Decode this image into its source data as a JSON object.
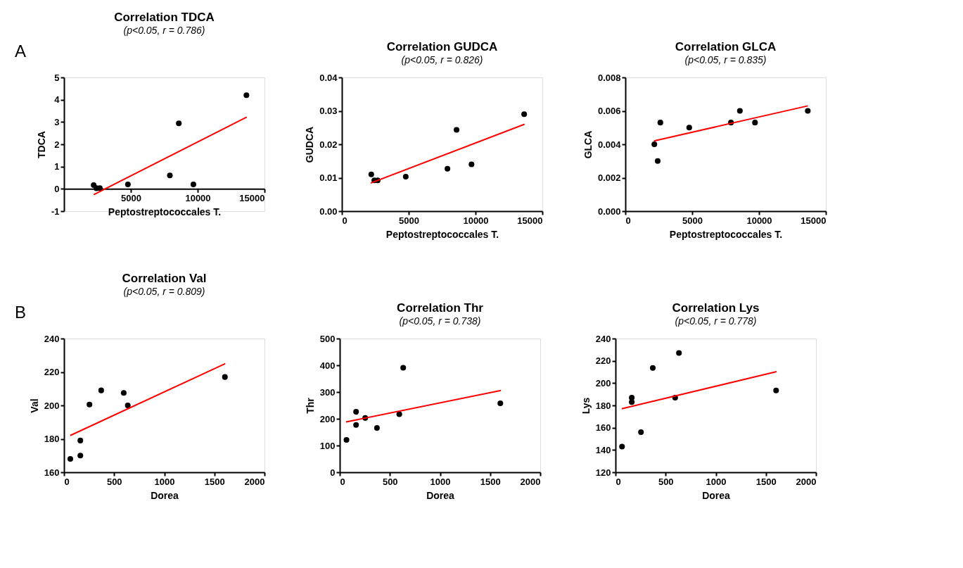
{
  "chart_data": [
    {
      "type": "scatter",
      "title": "Correlation TDCA",
      "subtitle": "(p<0.05, r = 0.786)",
      "xlabel": "Peptostreptococcales T.",
      "ylabel": "TDCA",
      "annotations": [
        "A"
      ],
      "xlim": [
        0,
        15000
      ],
      "xticks": [
        5000,
        10000,
        15000
      ],
      "ylim": [
        -1,
        5
      ],
      "yticks": [
        -1,
        0,
        1,
        2,
        3,
        4,
        5
      ],
      "grid": false,
      "legend": false,
      "series": [
        {
          "type": "scatter",
          "color": "#000000",
          "marker": "circle",
          "x": [
            2220,
            2430,
            2680,
            4780,
            7920,
            8590,
            9680,
            13650
          ],
          "values": [
            0.17,
            0.03,
            0.03,
            0.2,
            0.6,
            2.94,
            0.2,
            4.2
          ]
        },
        {
          "type": "line",
          "color": "#ff0000",
          "x": [
            2220,
            13670
          ],
          "values": [
            -0.26,
            3.22
          ]
        }
      ]
    },
    {
      "type": "scatter",
      "title": "Correlation GUDCA",
      "subtitle": "(p<0.05, r = 0.826)",
      "xlabel": "Peptostreptococcales T.",
      "ylabel": "GUDCA",
      "xlim": [
        0,
        15000
      ],
      "xticks": [
        0,
        5000,
        10000,
        15000
      ],
      "ylim": [
        0,
        0.04
      ],
      "yticks": [
        {
          "value": 0,
          "label": "0.00"
        },
        0.01,
        0.02,
        0.03,
        0.04
      ],
      "grid": false,
      "legend": false,
      "series": [
        {
          "type": "scatter",
          "color": "#000000",
          "marker": "circle",
          "x": [
            2200,
            2430,
            2680,
            4780,
            7900,
            8580,
            9700,
            13640
          ],
          "values": [
            0.011,
            0.0092,
            0.0092,
            0.0103,
            0.0127,
            0.0243,
            0.014,
            0.029
          ]
        },
        {
          "type": "line",
          "color": "#ff0000",
          "x": [
            2160,
            13670
          ],
          "values": [
            0.0084,
            0.026
          ]
        }
      ]
    },
    {
      "type": "scatter",
      "title": "Correlation GLCA",
      "subtitle": "(p<0.05, r = 0.835)",
      "xlabel": "Peptostreptococcales T.",
      "ylabel": "GLCA",
      "xlim": [
        0,
        15000
      ],
      "xticks": [
        0,
        5000,
        10000,
        15000
      ],
      "ylim": [
        0,
        0.008
      ],
      "yticks": [
        {
          "value": 0,
          "label": "0.000"
        },
        0.002,
        0.004,
        0.006,
        0.008
      ],
      "grid": false,
      "legend": false,
      "series": [
        {
          "type": "scatter",
          "color": "#000000",
          "marker": "circle",
          "x": [
            2170,
            2420,
            2620,
            4780,
            7900,
            8570,
            9700,
            13650
          ],
          "values": [
            0.004,
            0.003,
            0.0053,
            0.005,
            0.0053,
            0.006,
            0.0053,
            0.006
          ]
        },
        {
          "type": "line",
          "color": "#ff0000",
          "x": [
            2140,
            13660
          ],
          "values": [
            0.0042,
            0.0063
          ]
        }
      ]
    },
    {
      "type": "scatter",
      "title": "Correlation Val",
      "subtitle": "(p<0.05, r = 0.809)",
      "xlabel": "Dorea",
      "ylabel": "Val",
      "annotations": [
        "B"
      ],
      "xlim": [
        0,
        2000
      ],
      "xticks": [
        0,
        500,
        1000,
        1500,
        2000
      ],
      "ylim": [
        160,
        240
      ],
      "yticks": [
        160,
        180,
        200,
        220,
        240
      ],
      "grid": false,
      "legend": false,
      "series": [
        {
          "type": "scatter",
          "color": "#000000",
          "marker": "circle",
          "x": [
            63,
            163,
            163,
            254,
            371,
            596,
            636,
            1605
          ],
          "values": [
            168,
            179,
            170,
            200.5,
            209,
            207.5,
            200,
            217
          ]
        },
        {
          "type": "line",
          "color": "#ff0000",
          "x": [
            62,
            1609
          ],
          "values": [
            182,
            225
          ]
        }
      ]
    },
    {
      "type": "scatter",
      "title": "Correlation Thr",
      "subtitle": "(p<0.05, r = 0.738)",
      "xlabel": "Dorea",
      "ylabel": "Thr",
      "xlim": [
        0,
        2000
      ],
      "xticks": [
        0,
        500,
        1000,
        1500,
        2000
      ],
      "ylim": [
        0,
        500
      ],
      "yticks": [
        0,
        100,
        200,
        300,
        400,
        500
      ],
      "grid": false,
      "legend": false,
      "series": [
        {
          "type": "scatter",
          "color": "#000000",
          "marker": "circle",
          "x": [
            67,
            163,
            163,
            254,
            371,
            594,
            633,
            1602
          ],
          "values": [
            121,
            226,
            177,
            203,
            166,
            217,
            391,
            258
          ]
        },
        {
          "type": "line",
          "color": "#ff0000",
          "x": [
            62,
            1608
          ],
          "values": [
            188,
            306
          ]
        }
      ]
    },
    {
      "type": "scatter",
      "title": "Correlation Lys",
      "subtitle": "(p<0.05, r = 0.778)",
      "xlabel": "Dorea",
      "ylabel": "Lys",
      "xlim": [
        0,
        2000
      ],
      "xticks": [
        0,
        500,
        1000,
        1500,
        2000
      ],
      "ylim": [
        120,
        240
      ],
      "yticks": [
        120,
        140,
        160,
        180,
        200,
        220,
        240
      ],
      "grid": false,
      "legend": false,
      "series": [
        {
          "type": "scatter",
          "color": "#000000",
          "marker": "circle",
          "x": [
            65,
            162,
            162,
            254,
            372,
            595,
            633,
            1602
          ],
          "values": [
            143,
            187,
            183,
            156,
            213.6,
            187,
            227,
            193.4
          ]
        },
        {
          "type": "line",
          "color": "#ff0000",
          "x": [
            62,
            1607
          ],
          "values": [
            177,
            210.3
          ]
        }
      ]
    }
  ]
}
